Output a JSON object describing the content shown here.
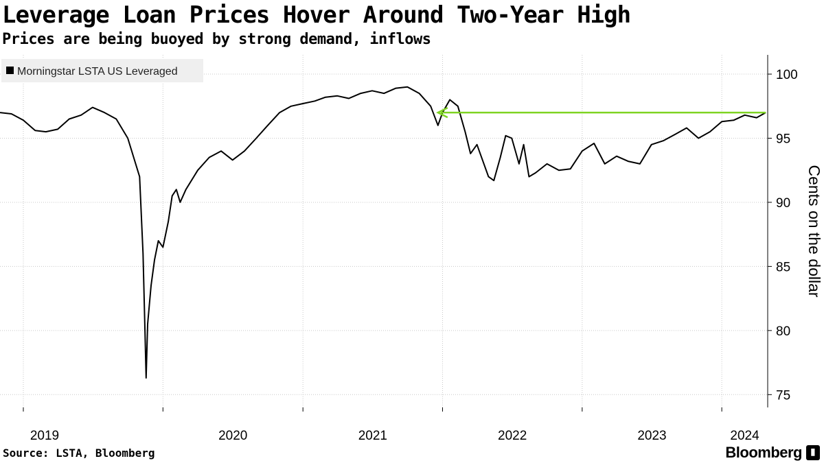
{
  "header": {
    "title": "Leverage Loan Prices Hover Around Two-Year High",
    "subtitle": "Prices are being buoyed by strong demand, inflows"
  },
  "footer": {
    "source": "Source: LSTA, Bloomberg",
    "brand": "Bloomberg"
  },
  "chart_data": {
    "type": "line",
    "title": "Leverage Loan Prices Hover Around Two-Year High",
    "subtitle": "Prices are being buoyed by strong demand, inflows",
    "ylabel": "Cents on the dollar",
    "xlabel": "",
    "ylim": [
      74,
      101.5
    ],
    "xlim": [
      "2018-11-01",
      "2024-04-30"
    ],
    "yticks": [
      75,
      80,
      85,
      90,
      95,
      100
    ],
    "xticks": [
      "2019",
      "2020",
      "2021",
      "2022",
      "2023",
      "2024"
    ],
    "grid": true,
    "legend_position": "top-left",
    "series": [
      {
        "name": "Morningstar LSTA US Leveraged",
        "color": "#000000",
        "points": [
          [
            "2018-11-01",
            97.0
          ],
          [
            "2018-12-01",
            96.9
          ],
          [
            "2019-01-01",
            96.4
          ],
          [
            "2019-02-01",
            95.6
          ],
          [
            "2019-03-01",
            95.5
          ],
          [
            "2019-04-01",
            95.7
          ],
          [
            "2019-05-01",
            96.5
          ],
          [
            "2019-06-01",
            96.8
          ],
          [
            "2019-07-01",
            97.4
          ],
          [
            "2019-08-01",
            97.0
          ],
          [
            "2019-09-01",
            96.5
          ],
          [
            "2019-10-01",
            95.0
          ],
          [
            "2019-11-01",
            92.0
          ],
          [
            "2019-11-10",
            86.0
          ],
          [
            "2019-11-15",
            80.0
          ],
          [
            "2019-11-18",
            76.3
          ],
          [
            "2019-11-22",
            80.5
          ],
          [
            "2019-12-01",
            83.5
          ],
          [
            "2019-12-10",
            85.5
          ],
          [
            "2019-12-20",
            87.0
          ],
          [
            "2020-01-01",
            86.5
          ],
          [
            "2020-01-15",
            88.5
          ],
          [
            "2020-01-25",
            90.5
          ],
          [
            "2020-02-05",
            91.0
          ],
          [
            "2020-02-15",
            90.0
          ],
          [
            "2020-03-01",
            91.0
          ],
          [
            "2020-04-01",
            92.5
          ],
          [
            "2020-05-01",
            93.5
          ],
          [
            "2020-06-01",
            94.0
          ],
          [
            "2020-07-01",
            93.3
          ],
          [
            "2020-08-01",
            94.0
          ],
          [
            "2020-09-01",
            95.0
          ],
          [
            "2020-10-01",
            96.0
          ],
          [
            "2020-11-01",
            97.0
          ],
          [
            "2020-12-01",
            97.5
          ],
          [
            "2021-01-01",
            97.7
          ],
          [
            "2021-02-01",
            97.9
          ],
          [
            "2021-03-01",
            98.2
          ],
          [
            "2021-04-01",
            98.3
          ],
          [
            "2021-05-01",
            98.1
          ],
          [
            "2021-06-01",
            98.5
          ],
          [
            "2021-07-01",
            98.7
          ],
          [
            "2021-08-01",
            98.5
          ],
          [
            "2021-09-01",
            98.9
          ],
          [
            "2021-10-01",
            99.0
          ],
          [
            "2021-11-01",
            98.5
          ],
          [
            "2021-12-01",
            97.5
          ],
          [
            "2021-12-20",
            96.0
          ],
          [
            "2022-01-01",
            97.0
          ],
          [
            "2022-01-20",
            98.0
          ],
          [
            "2022-02-10",
            97.5
          ],
          [
            "2022-03-01",
            95.5
          ],
          [
            "2022-03-15",
            93.8
          ],
          [
            "2022-04-01",
            94.5
          ],
          [
            "2022-05-01",
            92.0
          ],
          [
            "2022-05-15",
            91.7
          ],
          [
            "2022-06-01",
            93.5
          ],
          [
            "2022-06-15",
            95.2
          ],
          [
            "2022-07-01",
            95.0
          ],
          [
            "2022-07-20",
            93.0
          ],
          [
            "2022-08-01",
            94.5
          ],
          [
            "2022-08-15",
            92.0
          ],
          [
            "2022-09-01",
            92.3
          ],
          [
            "2022-10-01",
            93.0
          ],
          [
            "2022-11-01",
            92.5
          ],
          [
            "2022-12-01",
            92.6
          ],
          [
            "2023-01-01",
            94.0
          ],
          [
            "2023-02-01",
            94.6
          ],
          [
            "2023-03-01",
            93.0
          ],
          [
            "2023-04-01",
            93.6
          ],
          [
            "2023-05-01",
            93.2
          ],
          [
            "2023-06-01",
            93.0
          ],
          [
            "2023-07-01",
            94.5
          ],
          [
            "2023-08-01",
            94.8
          ],
          [
            "2023-09-01",
            95.3
          ],
          [
            "2023-10-01",
            95.8
          ],
          [
            "2023-11-01",
            95.0
          ],
          [
            "2023-12-01",
            95.5
          ],
          [
            "2024-01-01",
            96.3
          ],
          [
            "2024-02-01",
            96.4
          ],
          [
            "2024-03-01",
            96.8
          ],
          [
            "2024-04-01",
            96.6
          ],
          [
            "2024-04-25",
            97.0
          ]
        ]
      }
    ],
    "annotation": {
      "type": "arrow",
      "color": "#7ed321",
      "y": 97.0,
      "x_start": "2024-04-25",
      "x_end": "2021-12-20"
    }
  }
}
